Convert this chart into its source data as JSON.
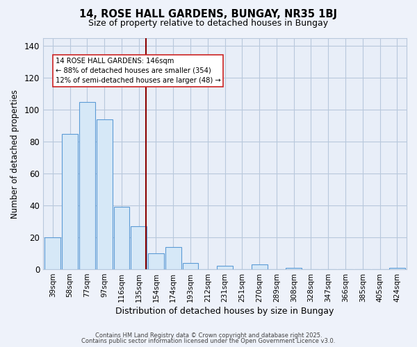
{
  "title": "14, ROSE HALL GARDENS, BUNGAY, NR35 1BJ",
  "subtitle": "Size of property relative to detached houses in Bungay",
  "xlabel": "Distribution of detached houses by size in Bungay",
  "ylabel": "Number of detached properties",
  "bin_labels": [
    "39sqm",
    "58sqm",
    "77sqm",
    "97sqm",
    "116sqm",
    "135sqm",
    "154sqm",
    "174sqm",
    "193sqm",
    "212sqm",
    "231sqm",
    "251sqm",
    "270sqm",
    "289sqm",
    "308sqm",
    "328sqm",
    "347sqm",
    "366sqm",
    "385sqm",
    "405sqm",
    "424sqm"
  ],
  "bar_heights": [
    20,
    85,
    105,
    94,
    39,
    27,
    10,
    14,
    4,
    0,
    2,
    0,
    3,
    0,
    1,
    0,
    0,
    0,
    0,
    0,
    1
  ],
  "bar_color": "#d6e8f7",
  "bar_edgecolor": "#5b9bd5",
  "ylim": [
    0,
    145
  ],
  "yticks": [
    0,
    20,
    40,
    60,
    80,
    100,
    120,
    140
  ],
  "vline_x": 5.42,
  "vline_color": "#8b0000",
  "annotation_title": "14 ROSE HALL GARDENS: 146sqm",
  "annotation_line1": "← 88% of detached houses are smaller (354)",
  "annotation_line2": "12% of semi-detached houses are larger (48) →",
  "footer1": "Contains HM Land Registry data © Crown copyright and database right 2025.",
  "footer2": "Contains public sector information licensed under the Open Government Licence v3.0.",
  "bg_color": "#eef2fa",
  "plot_bg_color": "#e8eef8",
  "grid_color": "#b8c8dc"
}
